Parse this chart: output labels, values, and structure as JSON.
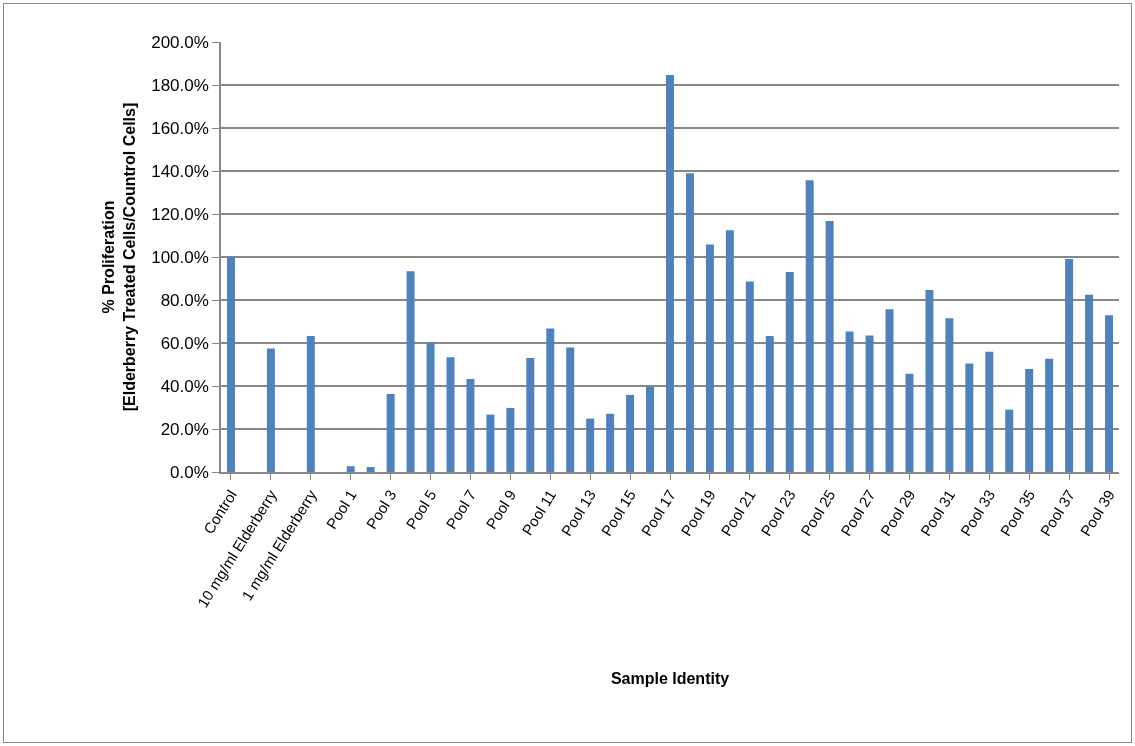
{
  "chart_data": {
    "type": "bar",
    "xlabel": "Sample Identity",
    "ylabel": "% Proliferation\n[Elderberry Treated Cells/Countrol Cells]",
    "categories": [
      "Control",
      null,
      "10 mg/ml Elderberry",
      null,
      "1 mg/ml Elderberry",
      null,
      "Pool 1",
      null,
      "Pool 3",
      null,
      "Pool 5",
      null,
      "Pool 7",
      null,
      "Pool 9",
      null,
      "Pool 11",
      null,
      "Pool 13",
      null,
      "Pool 15",
      null,
      "Pool 17",
      null,
      "Pool 19",
      null,
      "Pool 21",
      null,
      "Pool 23",
      null,
      "Pool 25",
      null,
      "Pool 27",
      null,
      "Pool 29",
      null,
      "Pool 31",
      null,
      "Pool 33",
      null,
      "Pool 35",
      null,
      "Pool 37",
      null,
      "Pool 39"
    ],
    "values": [
      100.0,
      null,
      57.4,
      null,
      63.3,
      null,
      2.7,
      2.3,
      36.3,
      93.4,
      60.1,
      53.4,
      43.2,
      26.7,
      29.8,
      53.0,
      66.8,
      57.9,
      24.8,
      27.1,
      35.9,
      39.8,
      184.7,
      139.0,
      105.8,
      112.5,
      88.6,
      63.2,
      93.0,
      135.7,
      116.7,
      65.4,
      63.5,
      75.7,
      45.7,
      84.6,
      71.5,
      50.5,
      55.9,
      29.0,
      47.9,
      52.7,
      99.1,
      82.5,
      72.9
    ],
    "color": "#4f81bd",
    "ylim": [
      0,
      200
    ],
    "yticks": [
      {
        "value": 0,
        "label": "0.0%"
      },
      {
        "value": 20,
        "label": "20.0%"
      },
      {
        "value": 40,
        "label": "40.0%"
      },
      {
        "value": 60,
        "label": "60.0%"
      },
      {
        "value": 80,
        "label": "80.0%"
      },
      {
        "value": 100,
        "label": "100.0%"
      },
      {
        "value": 120,
        "label": "120.0%"
      },
      {
        "value": 140,
        "label": "140.0%"
      },
      {
        "value": 160,
        "label": "160.0%"
      },
      {
        "value": 180,
        "label": "180.0%"
      },
      {
        "value": 200,
        "label": "200.0%"
      }
    ],
    "grid": "y",
    "legend": false
  }
}
